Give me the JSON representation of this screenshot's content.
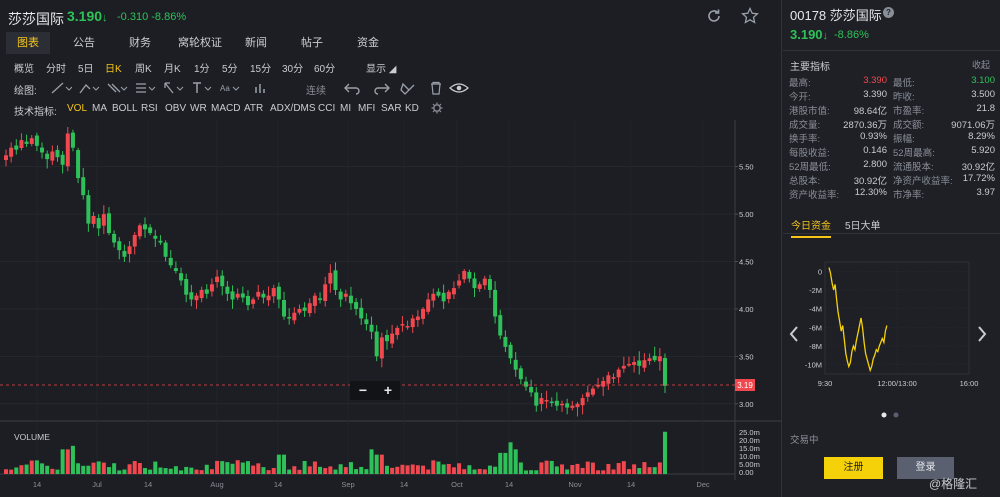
{
  "header": {
    "name": "莎莎国际",
    "price": "3.190",
    "change": "-0.310",
    "change_pct": "-8.86%",
    "price_arrow": "↓"
  },
  "tabs": [
    "图表",
    "公告",
    "财务",
    "窝轮权证",
    "新闻",
    "帖子",
    "资金"
  ],
  "active_tab": 0,
  "periods": [
    "概览",
    "分时",
    "5日",
    "日K",
    "周K",
    "月K",
    "1分",
    "5分",
    "15分",
    "30分",
    "60分",
    "显示"
  ],
  "active_period": 3,
  "draw_tools": {
    "label": "绘图:",
    "continuous": "连续"
  },
  "indicators": {
    "label": "技术指标:",
    "items": [
      "VOL",
      "MA",
      "BOLL",
      "RSI",
      "OBV",
      "WR",
      "MACD",
      "ATR",
      "ADX/DMS",
      "CCI",
      "MI",
      "MFI",
      "SAR",
      "KD"
    ],
    "active": 0
  },
  "chart_data": [
    {
      "type": "candlestick",
      "ylim": [
        2.85,
        5.95
      ],
      "y_ticks": [
        "5.50",
        "5.00",
        "4.50",
        "4.00",
        "3.50",
        "3.00"
      ],
      "x_ticks": [
        "14",
        "Jul",
        "14",
        "Aug",
        "14",
        "Sep",
        "14",
        "Oct",
        "14",
        "Nov",
        "14",
        "Dec"
      ],
      "current_price_label": "3.19",
      "zoom_out": "−",
      "zoom_in": "+",
      "up_color": "#f0484e",
      "down_color": "#2fc159",
      "closes": [
        5.62,
        5.7,
        5.68,
        5.78,
        5.74,
        5.8,
        5.72,
        5.65,
        5.58,
        5.66,
        5.6,
        5.52,
        5.85,
        5.7,
        5.38,
        5.2,
        4.9,
        4.98,
        4.85,
        5.0,
        4.8,
        4.7,
        4.62,
        4.55,
        4.66,
        4.78,
        4.88,
        4.84,
        4.8,
        4.74,
        4.7,
        4.55,
        4.46,
        4.4,
        4.3,
        4.15,
        4.1,
        4.14,
        4.2,
        4.16,
        4.26,
        4.34,
        4.24,
        4.16,
        4.1,
        4.16,
        4.12,
        4.04,
        4.1,
        4.18,
        4.12,
        4.14,
        4.22,
        4.1,
        3.92,
        3.9,
        3.96,
        4.0,
        3.98,
        4.06,
        4.14,
        4.1,
        4.26,
        4.38,
        4.2,
        4.1,
        4.16,
        4.06,
        4.0,
        3.9,
        3.84,
        3.76,
        3.5,
        3.7,
        3.66,
        3.74,
        3.8,
        3.84,
        3.82,
        3.9,
        3.92,
        4.0,
        4.1,
        4.16,
        4.14,
        4.08,
        4.18,
        4.22,
        4.3,
        4.4,
        4.32,
        4.22,
        4.26,
        4.32,
        4.2,
        3.92,
        3.72,
        3.6,
        3.48,
        3.36,
        3.26,
        3.18,
        3.12,
        2.98,
        3.06,
        3.04,
        3.02,
        2.98,
        3.0,
        2.96,
        2.98,
        3.0,
        3.06,
        3.12,
        3.16,
        3.2,
        3.24,
        3.3,
        3.28,
        3.36,
        3.4,
        3.42,
        3.44,
        3.4,
        3.46,
        3.48,
        3.46,
        3.5,
        3.19
      ],
      "volume_ticks": [
        "25.0m",
        "20.0m",
        "15.0m",
        "10.0m",
        "5.00m",
        "0.00"
      ],
      "volume_ylim": [
        0,
        25
      ],
      "volume_label": "VOLUME"
    },
    {
      "type": "line",
      "x_ticks": [
        "9:30",
        "12:00/13:00",
        "16:00"
      ],
      "y_ticks": [
        "0",
        "-2M",
        "-4M",
        "-6M",
        "-8M",
        "-10M"
      ],
      "ylim": [
        -11,
        1
      ],
      "color": "#f5d10a",
      "values": [
        0.4,
        -0.2,
        -1.2,
        -2.0,
        -1.4,
        -3.0,
        -4.4,
        -5.4,
        -6.4,
        -5.8,
        -7.2,
        -8.8,
        -9.6,
        -10.2,
        -9.8,
        -8.6,
        -8.0,
        -8.4,
        -7.4,
        -6.6,
        -5.8,
        -5.0,
        -6.0,
        -7.6,
        -8.8,
        -9.4,
        -10.0,
        -10.6,
        -10.2,
        -9.4,
        -9.0,
        -8.4,
        -8.6,
        -8.0,
        -7.6,
        -7.2,
        -7.6,
        -6.4,
        -5.8
      ]
    }
  ],
  "right_panel": {
    "code": "00178",
    "name": "莎莎国际",
    "help": "?",
    "price": "3.190",
    "price_arrow": "↓",
    "change_pct": "-8.86%",
    "section_title": "主要指标",
    "collapse": "收起",
    "metrics": [
      [
        "最高:",
        "3.390",
        "最低:",
        "3.100"
      ],
      [
        "今开:",
        "3.390",
        "昨收:",
        "3.500"
      ],
      [
        "港股市值:",
        "98.64亿",
        "市盈率:",
        "21.8"
      ],
      [
        "成交量:",
        "2870.36万",
        "成交额:",
        "9071.06万"
      ],
      [
        "换手率:",
        "0.93%",
        "振幅:",
        "8.29%"
      ],
      [
        "每股收益:",
        "0.146",
        "52周最高:",
        "5.920"
      ],
      [
        "52周最低:",
        "2.800",
        "流通股本:",
        "30.92亿"
      ],
      [
        "总股本:",
        "30.92亿",
        "净资产收益率:",
        "17.72%"
      ],
      [
        "资产收益率:",
        "12.30%",
        "市净率:",
        "3.97"
      ]
    ],
    "fund_tabs": [
      "今日资金",
      "5日大单"
    ],
    "status": "交易中",
    "register": "注册",
    "login": "登录",
    "watermark": "@格隆汇"
  },
  "colors": {
    "up": "#f0484e",
    "down": "#2fc159",
    "accent": "#f5c518"
  }
}
